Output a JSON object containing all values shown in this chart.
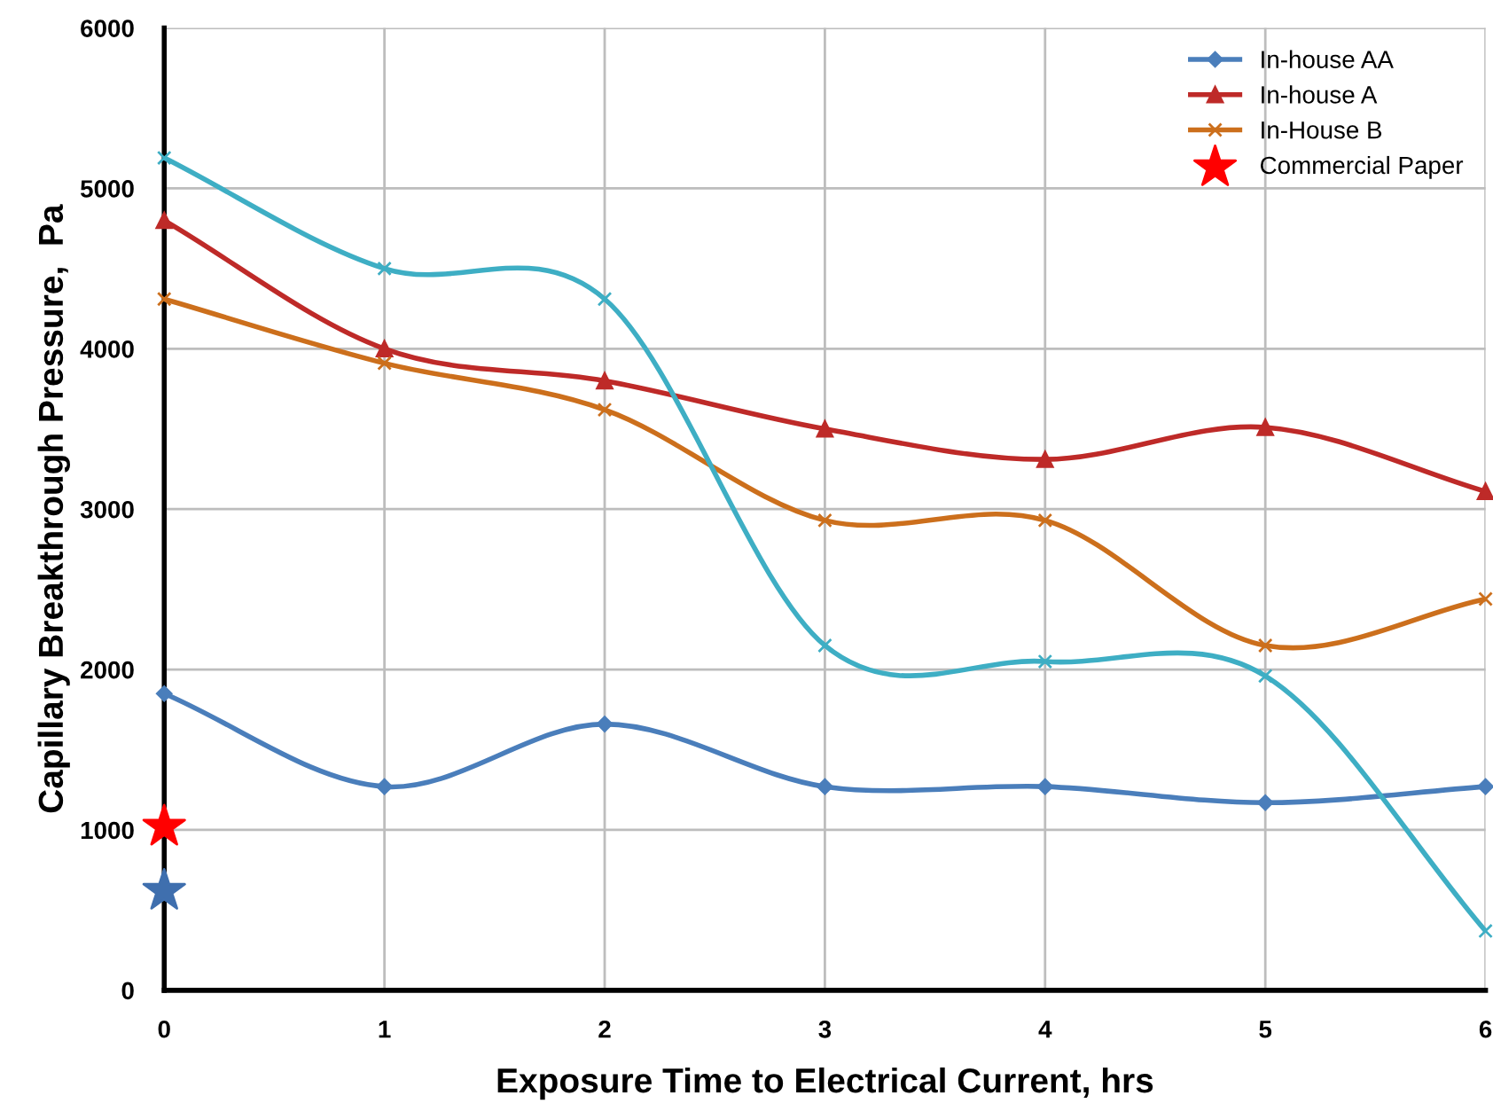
{
  "chart_data": {
    "type": "line",
    "xlabel": "Exposure Time to Electrical Current, hrs",
    "ylabel": "Capillary Breakthrough Pressure,  Pa",
    "x": [
      0,
      1,
      2,
      3,
      4,
      5,
      6
    ],
    "xlim": [
      0,
      6
    ],
    "xticks": [
      0,
      1,
      2,
      3,
      4,
      5,
      6
    ],
    "ylim": [
      0,
      6000
    ],
    "yticks": [
      0,
      1000,
      2000,
      3000,
      4000,
      5000,
      6000
    ],
    "grid": true,
    "legend": "top right",
    "series": [
      {
        "name": "In-house AA",
        "color": "#4a7ebb",
        "marker": "diamond",
        "values": [
          1850,
          1270,
          1660,
          1270,
          1270,
          1170,
          1270
        ]
      },
      {
        "name": "In-house A",
        "color": "#be2a28",
        "marker": "triangle",
        "values": [
          4800,
          4000,
          3800,
          3500,
          3310,
          3510,
          3110
        ]
      },
      {
        "name": "In-House B",
        "color": "#cc6f1c",
        "marker": "cross",
        "values": [
          4310,
          3910,
          3620,
          2930,
          2930,
          2150,
          2440
        ]
      },
      {
        "color": "#3eaec4",
        "marker": "cross",
        "values": [
          5190,
          4500,
          4310,
          2150,
          2050,
          1960,
          370
        ]
      },
      {
        "name": "Commercial Paper",
        "type": "scatter",
        "color": "#ff0000",
        "marker": "star",
        "x": [
          0
        ],
        "values": [
          1020
        ]
      },
      {
        "type": "scatter",
        "color": "#3f6fae",
        "marker": "star",
        "x": [
          0
        ],
        "values": [
          620
        ]
      }
    ]
  }
}
